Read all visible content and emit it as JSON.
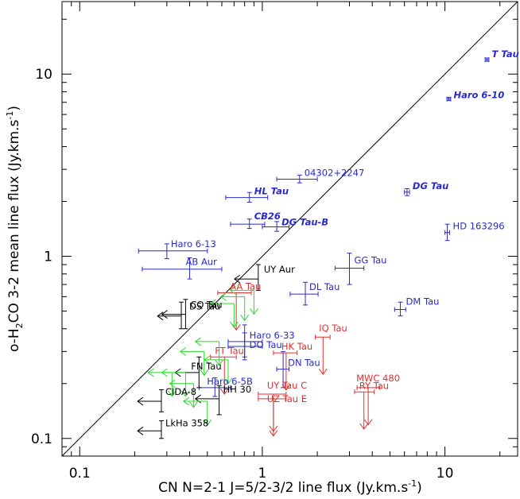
{
  "chart_data": {
    "type": "scatter",
    "title": "",
    "xlabel": "CN N=2-1 J=5/2-3/2 line flux (Jy.km.s",
    "xlabel_sup": "-1",
    "xlabel_end": ")",
    "ylabel": "o-H",
    "ylabel_sub": "2",
    "ylabel_mid": "CO 3-2 mean line flux (Jy.km.s",
    "ylabel_sup": "-1",
    "ylabel_end": ")",
    "xscale": "log",
    "yscale": "log",
    "xlim": [
      0.08,
      25
    ],
    "ylim": [
      0.08,
      25
    ],
    "x_ticks": [
      {
        "v": 0.1,
        "label": "0.1"
      },
      {
        "v": 1,
        "label": "1"
      },
      {
        "v": 10,
        "label": "10"
      }
    ],
    "y_ticks": [
      {
        "v": 0.1,
        "label": "0.1"
      },
      {
        "v": 1,
        "label": "1"
      },
      {
        "v": 10,
        "label": "10"
      }
    ],
    "one_to_one_line": true,
    "grid": false,
    "colors": {
      "blue": "#2a2acc",
      "red": "#e23030",
      "black": "#000000",
      "green": "#22dd22"
    },
    "points": [
      {
        "label": "T Tau",
        "x": 17.0,
        "y": 12.0,
        "xerr": [
          0.4,
          0.4
        ],
        "yerr": [
          0.25,
          0.25
        ],
        "color": "blue",
        "italic": true,
        "dx": 6,
        "dy": -3
      },
      {
        "label": "Haro 6-10",
        "x": 10.5,
        "y": 7.3,
        "xerr": [
          0.25,
          0.25
        ],
        "yerr": [
          0.15,
          0.15
        ],
        "color": "blue",
        "italic": true,
        "dx": 6,
        "dy": -1
      },
      {
        "label": "DG Tau",
        "x": 6.2,
        "y": 2.25,
        "xerr": [
          0.2,
          0.2
        ],
        "yerr": [
          0.1,
          0.1
        ],
        "color": "blue",
        "italic": true,
        "dx": 7,
        "dy": -4
      },
      {
        "label": "HD 163296",
        "x": 10.3,
        "y": 1.35,
        "xerr": [
          0.3,
          0.3
        ],
        "yerr": [
          0.13,
          0.15
        ],
        "color": "blue",
        "italic": false,
        "dx": 7,
        "dy": -4
      },
      {
        "label": "04302+2247",
        "x": 1.6,
        "y": 2.65,
        "xerr": [
          0.4,
          0.4
        ],
        "yerr": [
          0.12,
          0.14
        ],
        "color": "blue",
        "italic": false,
        "dx": 6,
        "dy": -4
      },
      {
        "label": "HL Tau",
        "x": 0.85,
        "y": 2.1,
        "xerr": [
          0.22,
          0.22
        ],
        "yerr": [
          0.12,
          0.14
        ],
        "color": "blue",
        "italic": true,
        "dx": 6,
        "dy": -4
      },
      {
        "label": "CB26",
        "x": 0.85,
        "y": 1.5,
        "xerr": [
          0.18,
          0.18
        ],
        "yerr": [
          0.08,
          0.1
        ],
        "color": "blue",
        "italic": true,
        "dx": 6,
        "dy": -6
      },
      {
        "label": "DG Tau-B",
        "x": 1.2,
        "y": 1.45,
        "xerr": [
          0.2,
          0.2
        ],
        "yerr": [
          0.08,
          0.1
        ],
        "color": "blue",
        "italic": true,
        "dx": 6,
        "dy": -2
      },
      {
        "label": "Haro 6-13",
        "x": 0.3,
        "y": 1.07,
        "xerr": [
          0.09,
          0.2
        ],
        "yerr": [
          0.1,
          0.1
        ],
        "color": "blue",
        "italic": false,
        "dx": 5,
        "dy": -5
      },
      {
        "label": "AB Aur",
        "x": 0.4,
        "y": 0.85,
        "xerr": [
          0.18,
          0.2
        ],
        "yerr": [
          0.1,
          0.13
        ],
        "color": "blue",
        "italic": false,
        "dx": -5,
        "dy": -5
      },
      {
        "label": "GG Tau",
        "x": 3.0,
        "y": 0.86,
        "xerr": [
          0.5,
          0.6
        ],
        "yerr": [
          0.16,
          0.18
        ],
        "color": "blue",
        "italic": false,
        "dx": 6,
        "dy": -6
      },
      {
        "label": "DL Tau",
        "x": 1.72,
        "y": 0.62,
        "xerr": [
          0.3,
          0.3
        ],
        "yerr": [
          0.08,
          0.1
        ],
        "color": "blue",
        "italic": false,
        "dx": 5,
        "dy": -5
      },
      {
        "label": "DM Tau",
        "x": 5.7,
        "y": 0.51,
        "xerr": [
          0.4,
          0.4
        ],
        "yerr": [
          0.04,
          0.05
        ],
        "color": "blue",
        "italic": false,
        "dx": 7,
        "dy": -6
      },
      {
        "label": "Haro 6-33",
        "x": 0.8,
        "y": 0.34,
        "xerr": [
          0.15,
          0.2
        ],
        "yerr": [
          0.06,
          0.08
        ],
        "color": "blue",
        "italic": false,
        "dx": 6,
        "dy": -4
      },
      {
        "label": "DO Tau",
        "x": 0.8,
        "y": 0.32,
        "xerr": [
          0.15,
          0.2
        ],
        "yerr": [
          0.05,
          0.06
        ],
        "color": "blue",
        "italic": false,
        "dx": 6,
        "dy": 2
      },
      {
        "label": "DN Tau",
        "x": 1.3,
        "y": 0.24,
        "xerr": [
          0.1,
          0.1
        ],
        "yerr": [
          0.05,
          0.06
        ],
        "color": "blue",
        "italic": false,
        "dx": 6,
        "dy": 0
      },
      {
        "label": "Haro 6-5B",
        "x": 0.55,
        "y": 0.19,
        "xerr": [
          0.1,
          0.12
        ],
        "yerr": [
          0.02,
          0.025
        ],
        "color": "blue",
        "italic": false,
        "dx": -10,
        "dy": -4
      },
      {
        "label": "IQ Tau",
        "x": 2.15,
        "y": 0.36,
        "arrow": "down",
        "xerr": [
          0.2,
          0.2
        ],
        "color": "red",
        "dx": -5,
        "dy": -7
      },
      {
        "label": "HK Tau",
        "x": 1.35,
        "y": 0.295,
        "arrow": "down",
        "xerr": [
          0.2,
          0.2
        ],
        "color": "red",
        "dx": -6,
        "dy": -4
      },
      {
        "label": "AA Tau",
        "x": 0.72,
        "y": 0.63,
        "arrow": "down",
        "xerr": [
          0.15,
          0.15
        ],
        "color": "red",
        "dx": -8,
        "dy": -4
      },
      {
        "label": "FT Tau",
        "x": 0.62,
        "y": 0.28,
        "arrow": "down",
        "xerr": [
          0.1,
          0.1
        ],
        "color": "red",
        "dx": -12,
        "dy": -4
      },
      {
        "label": "MWC 480",
        "x": 3.8,
        "y": 0.19,
        "arrow": "down",
        "xerr": [
          0.5,
          0.6
        ],
        "color": "red",
        "dx": -15,
        "dy": -8
      },
      {
        "label": "RY Tau",
        "x": 3.6,
        "y": 0.18,
        "arrow": "down",
        "xerr": [
          0.4,
          0.5
        ],
        "color": "red",
        "dx": -6,
        "dy": 0
      },
      {
        "label": "UY Tau C",
        "x": 1.15,
        "y": 0.175,
        "arrow": "down",
        "xerr": [
          0.2,
          0.2
        ],
        "color": "red",
        "dx": -8,
        "dy": -7
      },
      {
        "label": "UZ Tau E",
        "x": 1.15,
        "y": 0.165,
        "arrow": "down",
        "xerr": [
          0.2,
          0.2
        ],
        "color": "red",
        "dx": -8,
        "dy": 4
      },
      {
        "label": "UY Aur",
        "x": 0.95,
        "y": 0.75,
        "arrow": "left",
        "yerr": [
          0.1,
          0.15
        ],
        "color": "black",
        "dx": 7,
        "dy": -8
      },
      {
        "label": "CQ Tau",
        "x": 0.38,
        "y": 0.48,
        "arrow": "left",
        "yerr": [
          0.08,
          0.1
        ],
        "color": "black",
        "dx": 6,
        "dy": -8
      },
      {
        "label": "DS Tau",
        "x": 0.36,
        "y": 0.47,
        "arrow": "left",
        "yerr": [
          0.07,
          0.09
        ],
        "color": "black",
        "dx": 10,
        "dy": -8
      },
      {
        "label": "FN Tau",
        "x": 0.45,
        "y": 0.23,
        "arrow": "left",
        "yerr": [
          0.04,
          0.05
        ],
        "color": "black",
        "dx": -10,
        "dy": -4
      },
      {
        "label": "HH 30",
        "x": 0.58,
        "y": 0.165,
        "arrow": "left",
        "yerr": [
          0.03,
          0.03
        ],
        "color": "black",
        "dx": 5,
        "dy": -8
      },
      {
        "label": "CIDA-8",
        "x": 0.28,
        "y": 0.16,
        "arrow": "left",
        "yerr": [
          0.02,
          0.025
        ],
        "color": "black",
        "dx": 5,
        "dy": -8
      },
      {
        "label": "LkHa 358",
        "x": 0.28,
        "y": 0.11,
        "arrow": "left",
        "yerr": [
          0.01,
          0.015
        ],
        "color": "black",
        "dx": 5,
        "dy": -6
      }
    ],
    "green_upper_limits": [
      {
        "x": 0.9,
        "y": 0.65
      },
      {
        "x": 0.8,
        "y": 0.6
      },
      {
        "x": 0.7,
        "y": 0.55
      },
      {
        "x": 0.58,
        "y": 0.34
      },
      {
        "x": 0.48,
        "y": 0.3
      },
      {
        "x": 0.65,
        "y": 0.27
      },
      {
        "x": 0.38,
        "y": 0.23
      },
      {
        "x": 0.32,
        "y": 0.23
      },
      {
        "x": 0.42,
        "y": 0.2
      },
      {
        "x": 0.5,
        "y": 0.16
      }
    ]
  }
}
